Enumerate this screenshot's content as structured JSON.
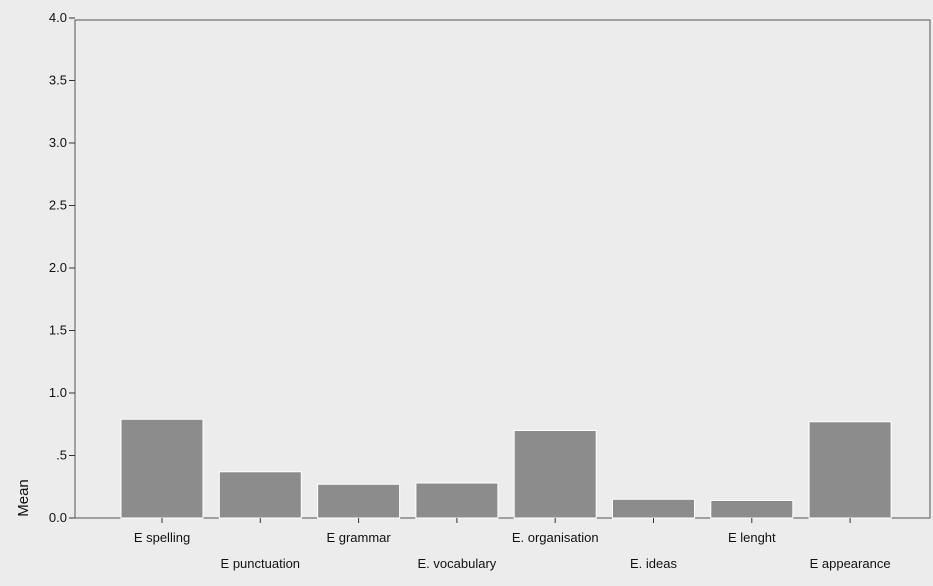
{
  "chart_data": {
    "type": "bar",
    "categories": [
      "E spelling",
      "E punctuation",
      "E grammar",
      "E. vocabulary",
      "E. organisation",
      "E. ideas",
      "E lenght",
      "E appearance"
    ],
    "values": [
      0.79,
      0.37,
      0.27,
      0.28,
      0.7,
      0.15,
      0.14,
      0.77
    ],
    "y_tick_labels": [
      "0.0",
      ".5",
      "1.0",
      "1.5",
      "2.0",
      "2.5",
      "3.0",
      "3.5",
      "4.0"
    ],
    "y_ticks": [
      0,
      0.5,
      1,
      1.5,
      2,
      2.5,
      3,
      3.5,
      4
    ],
    "ylabel": "Mean",
    "xlabel": "",
    "title": "",
    "ylim": [
      0,
      4
    ],
    "grid": false,
    "colors": {
      "bar": "#8c8c8c",
      "background": "#ececec",
      "axis": "#333333"
    }
  }
}
